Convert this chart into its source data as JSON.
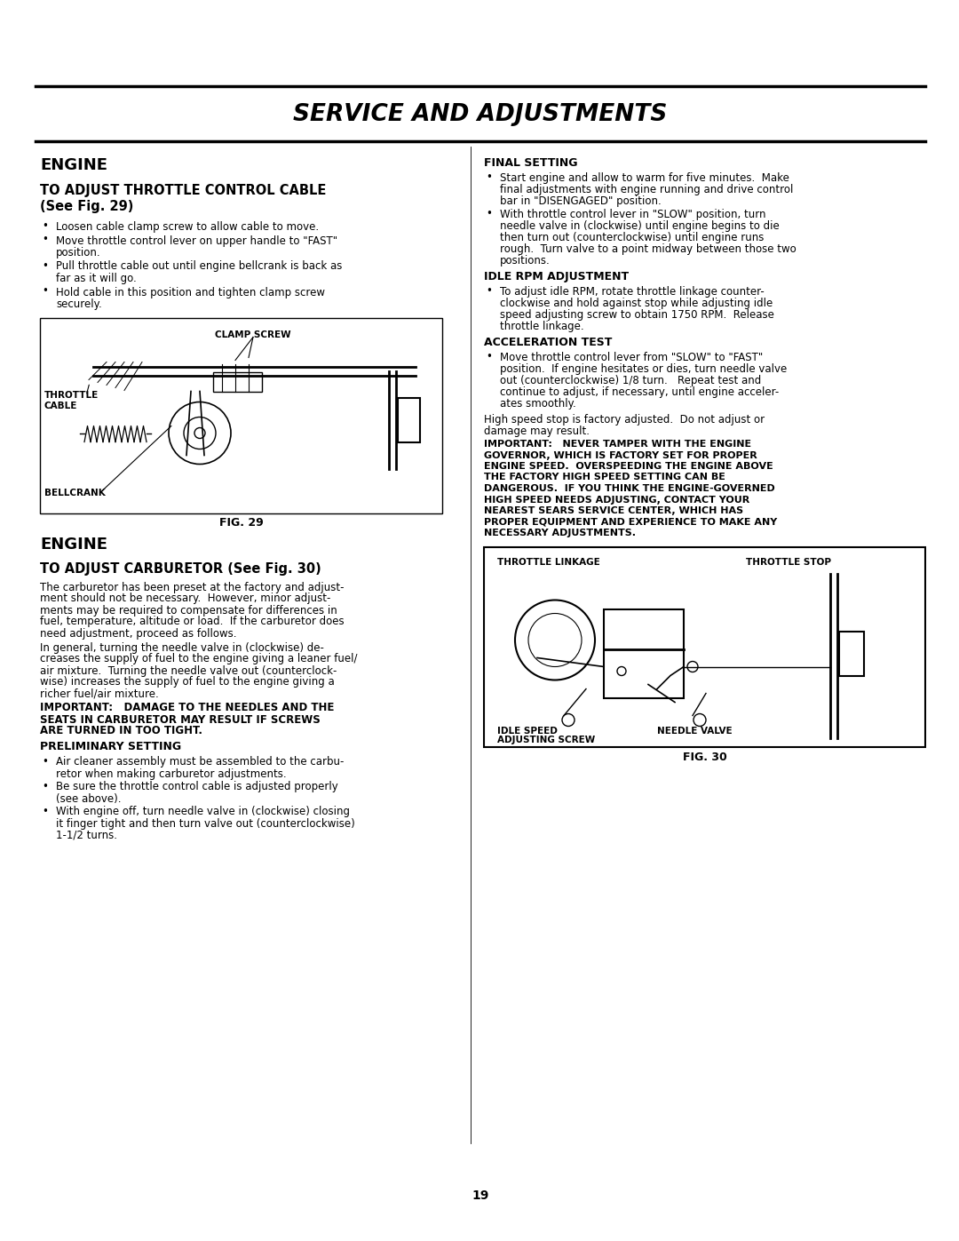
{
  "bg_color": "#ffffff",
  "title": "SERVICE AND ADJUSTMENTS",
  "page_number": "19",
  "fig_width": 10.8,
  "fig_height": 13.97,
  "dpi": 100,
  "title_fs": 19,
  "left_col": {
    "section1_head": "ENGINE",
    "section1_subhead": "TO ADJUST THROTTLE CONTROL CABLE\n(See Fig. 29)",
    "section1_bullets": [
      "Loosen cable clamp screw to allow cable to move.",
      "Move throttle control lever on upper handle to \"FAST\"\nposition.",
      "Pull throttle cable out until engine bellcrank is back as\nfar as it will go.",
      "Hold cable in this position and tighten clamp screw\nsecurely."
    ],
    "fig29_caption": "FIG. 29",
    "section2_head": "ENGINE",
    "section2_subhead": "TO ADJUST CARBURETOR (See Fig. 30)",
    "section2_body": [
      "The carburetor has been preset at the factory and adjust-\nment should not be necessary.  However, minor adjust-\nments may be required to compensate for differences in\nfuel, temperature, altitude or load.  If the carburetor does\nneed adjustment, proceed as follows.",
      "In general, turning the needle valve in (clockwise) de-\ncreases the supply of fuel to the engine giving a leaner fuel/\nair mixture.  Turning the needle valve out (counterclock-\nwise) increases the supply of fuel to the engine giving a\nricher fuel/air mixture.",
      "IMPORTANT:   DAMAGE TO THE NEEDLES AND THE\nSEATS IN CARBURETOR MAY RESULT IF SCREWS\nARE TURNED IN TOO TIGHT."
    ],
    "prelim_head": "PRELIMINARY SETTING",
    "prelim_bullets": [
      "Air cleaner assembly must be assembled to the carbu-\nretor when making carburetor adjustments.",
      "Be sure the throttle control cable is adjusted properly\n(see above).",
      "With engine off, turn needle valve in (clockwise) closing\nit finger tight and then turn valve out (counterclockwise)\n1-1/2 turns."
    ]
  },
  "right_col": {
    "final_head": "FINAL SETTING",
    "final_bullets": [
      "Start engine and allow to warm for five minutes.  Make\nfinal adjustments with engine running and drive control\nbar in \"DISENGAGED\" position.",
      "With throttle control lever in \"SLOW\" position, turn\nneedle valve in (clockwise) until engine begins to die\nthen turn out (counterclockwise) until engine runs\nrough.  Turn valve to a point midway between those two\npositions."
    ],
    "idle_head": "IDLE RPM ADJUSTMENT",
    "idle_bullets": [
      "To adjust idle RPM, rotate throttle linkage counter-\nclockwise and hold against stop while adjusting idle\nspeed adjusting screw to obtain 1750 RPM.  Release\nthrottle linkage."
    ],
    "accel_head": "ACCELERATION TEST",
    "accel_bullets": [
      "Move throttle control lever from \"SLOW\" to \"FAST\"\nposition.  If engine hesitates or dies, turn needle valve\nout (counterclockwise) 1/8 turn.   Repeat test and\ncontinue to adjust, if necessary, until engine acceler-\nates smoothly."
    ],
    "high_speed_text": "High speed stop is factory adjusted.  Do not adjust or\ndamage may result.",
    "important_text": "IMPORTANT:   NEVER TAMPER WITH THE ENGINE\nGOVERNOR, WHICH IS FACTORY SET FOR PROPER\nENGINE SPEED.  OVERSPEEDING THE ENGINE ABOVE\nTHE FACTORY HIGH SPEED SETTING CAN BE\nDANGEROUS.  IF YOU THINK THE ENGINE-GOVERNED\nHIGH SPEED NEEDS ADJUSTING, CONTACT YOUR\nNEAREST SEARS SERVICE CENTER, WHICH HAS\nPROPER EQUIPMENT AND EXPERIENCE TO MAKE ANY\nNECESSARY ADJUSTMENTS.",
    "fig30_caption": "FIG. 30"
  }
}
